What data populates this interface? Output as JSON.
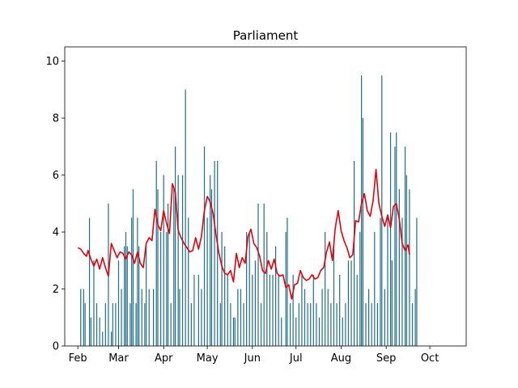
{
  "chart_data": {
    "type": "bar",
    "title": "Parliament",
    "xlabel": "",
    "ylabel": "",
    "ylim": [
      0,
      10.5
    ],
    "grid": false,
    "yticks": [
      0,
      2,
      4,
      6,
      8,
      10
    ],
    "xticks": [
      {
        "label": "Feb",
        "date": "2023-02-01"
      },
      {
        "label": "Mar",
        "date": "2023-03-01"
      },
      {
        "label": "Apr",
        "date": "2023-04-01"
      },
      {
        "label": "May",
        "date": "2023-05-01"
      },
      {
        "label": "Jun",
        "date": "2023-06-01"
      },
      {
        "label": "Jul",
        "date": "2023-07-01"
      },
      {
        "label": "Aug",
        "date": "2023-08-01"
      },
      {
        "label": "Sep",
        "date": "2023-09-01"
      },
      {
        "label": "Oct",
        "date": "2023-10-01"
      }
    ],
    "xlim": [
      "2023-01-23",
      "2023-10-26"
    ],
    "colors": {
      "bars": "#1f6f8b",
      "line": "#e8000b"
    },
    "series": [
      {
        "type": "bar",
        "points": [
          [
            "2023-02-03",
            2
          ],
          [
            "2023-02-05",
            2
          ],
          [
            "2023-02-06",
            1.5
          ],
          [
            "2023-02-09",
            4.5
          ],
          [
            "2023-02-10",
            1
          ],
          [
            "2023-02-12",
            3
          ],
          [
            "2023-02-14",
            1.5
          ],
          [
            "2023-02-16",
            1
          ],
          [
            "2023-02-18",
            0.5
          ],
          [
            "2023-02-20",
            1.5
          ],
          [
            "2023-02-22",
            5
          ],
          [
            "2023-02-24",
            0.5
          ],
          [
            "2023-02-25",
            1.5
          ],
          [
            "2023-02-27",
            1.5
          ],
          [
            "2023-03-01",
            3
          ],
          [
            "2023-03-03",
            2
          ],
          [
            "2023-03-05",
            3.5
          ],
          [
            "2023-03-06",
            4
          ],
          [
            "2023-03-07",
            3.5
          ],
          [
            "2023-03-09",
            1.5
          ],
          [
            "2023-03-10",
            4.5
          ],
          [
            "2023-03-11",
            5.5
          ],
          [
            "2023-03-13",
            1.5
          ],
          [
            "2023-03-14",
            4.5
          ],
          [
            "2023-03-15",
            3.5
          ],
          [
            "2023-03-17",
            2
          ],
          [
            "2023-03-19",
            1.5
          ],
          [
            "2023-03-20",
            3.5
          ],
          [
            "2023-03-22",
            2
          ],
          [
            "2023-03-25",
            2
          ],
          [
            "2023-03-27",
            6.5
          ],
          [
            "2023-03-28",
            5.5
          ],
          [
            "2023-03-30",
            4
          ],
          [
            "2023-04-01",
            6
          ],
          [
            "2023-04-03",
            4
          ],
          [
            "2023-04-04",
            5
          ],
          [
            "2023-04-06",
            1.5
          ],
          [
            "2023-04-08",
            5.5
          ],
          [
            "2023-04-09",
            7
          ],
          [
            "2023-04-11",
            6
          ],
          [
            "2023-04-12",
            2
          ],
          [
            "2023-04-14",
            6
          ],
          [
            "2023-04-16",
            9
          ],
          [
            "2023-04-18",
            4.5
          ],
          [
            "2023-04-20",
            1.5
          ],
          [
            "2023-04-22",
            2.5
          ],
          [
            "2023-04-25",
            2.5
          ],
          [
            "2023-04-27",
            2
          ],
          [
            "2023-04-29",
            7
          ],
          [
            "2023-05-01",
            4.5
          ],
          [
            "2023-05-03",
            6
          ],
          [
            "2023-05-04",
            5.5
          ],
          [
            "2023-05-06",
            6.5
          ],
          [
            "2023-05-08",
            6.5
          ],
          [
            "2023-05-10",
            1.5
          ],
          [
            "2023-05-11",
            4
          ],
          [
            "2023-05-13",
            3.5
          ],
          [
            "2023-05-15",
            2.5
          ],
          [
            "2023-05-17",
            1.5
          ],
          [
            "2023-05-19",
            1
          ],
          [
            "2023-05-20",
            1
          ],
          [
            "2023-05-22",
            2
          ],
          [
            "2023-05-24",
            2
          ],
          [
            "2023-05-26",
            1.5
          ],
          [
            "2023-05-28",
            4
          ],
          [
            "2023-05-30",
            4
          ],
          [
            "2023-06-01",
            2.5
          ],
          [
            "2023-06-03",
            3
          ],
          [
            "2023-06-05",
            5
          ],
          [
            "2023-06-07",
            1.5
          ],
          [
            "2023-06-09",
            5
          ],
          [
            "2023-06-11",
            4
          ],
          [
            "2023-06-13",
            2.5
          ],
          [
            "2023-06-15",
            2.5
          ],
          [
            "2023-06-17",
            3.5
          ],
          [
            "2023-06-19",
            2.5
          ],
          [
            "2023-06-21",
            1
          ],
          [
            "2023-06-24",
            4
          ],
          [
            "2023-06-25",
            4.5
          ],
          [
            "2023-06-27",
            1.5
          ],
          [
            "2023-06-29",
            2.5
          ],
          [
            "2023-07-01",
            1
          ],
          [
            "2023-07-03",
            1.5
          ],
          [
            "2023-07-05",
            2.5
          ],
          [
            "2023-07-07",
            2
          ],
          [
            "2023-07-09",
            1.5
          ],
          [
            "2023-07-11",
            1.5
          ],
          [
            "2023-07-13",
            2.5
          ],
          [
            "2023-07-15",
            1.5
          ],
          [
            "2023-07-17",
            1
          ],
          [
            "2023-07-19",
            2
          ],
          [
            "2023-07-21",
            4
          ],
          [
            "2023-07-23",
            2
          ],
          [
            "2023-07-25",
            1.5
          ],
          [
            "2023-07-27",
            3.5
          ],
          [
            "2023-07-29",
            1.5
          ],
          [
            "2023-07-31",
            2.5
          ],
          [
            "2023-08-02",
            1
          ],
          [
            "2023-08-04",
            1.5
          ],
          [
            "2023-08-06",
            3
          ],
          [
            "2023-08-08",
            3
          ],
          [
            "2023-08-10",
            6.5
          ],
          [
            "2023-08-12",
            2.5
          ],
          [
            "2023-08-14",
            4
          ],
          [
            "2023-08-15",
            9.5
          ],
          [
            "2023-08-16",
            8
          ],
          [
            "2023-08-18",
            1.5
          ],
          [
            "2023-08-20",
            2
          ],
          [
            "2023-08-22",
            1.5
          ],
          [
            "2023-08-24",
            4
          ],
          [
            "2023-08-26",
            1.5
          ],
          [
            "2023-08-28",
            4.5
          ],
          [
            "2023-08-29",
            9.5
          ],
          [
            "2023-08-31",
            2
          ],
          [
            "2023-09-02",
            4.5
          ],
          [
            "2023-09-04",
            7.5
          ],
          [
            "2023-09-05",
            3
          ],
          [
            "2023-09-07",
            7
          ],
          [
            "2023-09-08",
            7.5
          ],
          [
            "2023-09-10",
            5.5
          ],
          [
            "2023-09-12",
            4.5
          ],
          [
            "2023-09-14",
            7
          ],
          [
            "2023-09-15",
            6
          ],
          [
            "2023-09-17",
            5.5
          ],
          [
            "2023-09-19",
            1.5
          ],
          [
            "2023-09-21",
            2
          ],
          [
            "2023-09-22",
            4.5
          ]
        ]
      },
      {
        "type": "line",
        "points": [
          [
            "2023-02-01",
            3.45
          ],
          [
            "2023-02-03",
            3.4
          ],
          [
            "2023-02-05",
            3.25
          ],
          [
            "2023-02-07",
            3.15
          ],
          [
            "2023-02-08",
            3.35
          ],
          [
            "2023-02-10",
            3.05
          ],
          [
            "2023-02-12",
            2.8
          ],
          [
            "2023-02-14",
            3.05
          ],
          [
            "2023-02-16",
            2.7
          ],
          [
            "2023-02-18",
            3.1
          ],
          [
            "2023-02-20",
            2.75
          ],
          [
            "2023-02-22",
            2.45
          ],
          [
            "2023-02-24",
            3.6
          ],
          [
            "2023-02-26",
            3.35
          ],
          [
            "2023-02-28",
            3.1
          ],
          [
            "2023-03-02",
            3.3
          ],
          [
            "2023-03-04",
            3.25
          ],
          [
            "2023-03-06",
            3.05
          ],
          [
            "2023-03-08",
            3.3
          ],
          [
            "2023-03-10",
            3.2
          ],
          [
            "2023-03-12",
            2.9
          ],
          [
            "2023-03-14",
            3.3
          ],
          [
            "2023-03-16",
            2.9
          ],
          [
            "2023-03-18",
            2.75
          ],
          [
            "2023-03-20",
            3.6
          ],
          [
            "2023-03-22",
            3.8
          ],
          [
            "2023-03-24",
            3.7
          ],
          [
            "2023-03-26",
            4.8
          ],
          [
            "2023-03-28",
            4.25
          ],
          [
            "2023-03-30",
            4.05
          ],
          [
            "2023-04-01",
            4.75
          ],
          [
            "2023-04-03",
            4.3
          ],
          [
            "2023-04-05",
            3.95
          ],
          [
            "2023-04-07",
            5.7
          ],
          [
            "2023-04-09",
            5.4
          ],
          [
            "2023-04-11",
            4.05
          ],
          [
            "2023-04-13",
            3.8
          ],
          [
            "2023-04-15",
            3.6
          ],
          [
            "2023-04-17",
            3.45
          ],
          [
            "2023-04-19",
            3.3
          ],
          [
            "2023-04-21",
            3.35
          ],
          [
            "2023-04-23",
            3.8
          ],
          [
            "2023-04-25",
            3.4
          ],
          [
            "2023-04-27",
            3.85
          ],
          [
            "2023-04-29",
            4.75
          ],
          [
            "2023-05-01",
            5.25
          ],
          [
            "2023-05-03",
            5.05
          ],
          [
            "2023-05-05",
            4.65
          ],
          [
            "2023-05-07",
            3.9
          ],
          [
            "2023-05-09",
            3.25
          ],
          [
            "2023-05-11",
            2.8
          ],
          [
            "2023-05-13",
            2.55
          ],
          [
            "2023-05-15",
            2.5
          ],
          [
            "2023-05-17",
            2.65
          ],
          [
            "2023-05-19",
            2.25
          ],
          [
            "2023-05-21",
            3.25
          ],
          [
            "2023-05-23",
            2.75
          ],
          [
            "2023-05-25",
            3.1
          ],
          [
            "2023-05-27",
            2.9
          ],
          [
            "2023-05-29",
            3.85
          ],
          [
            "2023-05-31",
            4.1
          ],
          [
            "2023-06-02",
            3.6
          ],
          [
            "2023-06-04",
            3.45
          ],
          [
            "2023-06-06",
            3.15
          ],
          [
            "2023-06-08",
            2.65
          ],
          [
            "2023-06-10",
            2.55
          ],
          [
            "2023-06-12",
            3.0
          ],
          [
            "2023-06-14",
            2.7
          ],
          [
            "2023-06-16",
            3.05
          ],
          [
            "2023-06-18",
            2.55
          ],
          [
            "2023-06-20",
            2.45
          ],
          [
            "2023-06-22",
            2.5
          ],
          [
            "2023-06-24",
            2.05
          ],
          [
            "2023-06-26",
            2.15
          ],
          [
            "2023-06-28",
            1.65
          ],
          [
            "2023-06-30",
            2.15
          ],
          [
            "2023-07-02",
            2.2
          ],
          [
            "2023-07-04",
            2.65
          ],
          [
            "2023-07-06",
            2.4
          ],
          [
            "2023-07-08",
            2.3
          ],
          [
            "2023-07-10",
            2.35
          ],
          [
            "2023-07-12",
            2.5
          ],
          [
            "2023-07-14",
            2.35
          ],
          [
            "2023-07-16",
            2.4
          ],
          [
            "2023-07-18",
            2.65
          ],
          [
            "2023-07-20",
            2.75
          ],
          [
            "2023-07-22",
            3.3
          ],
          [
            "2023-07-24",
            3.65
          ],
          [
            "2023-07-26",
            3.0
          ],
          [
            "2023-07-28",
            4.15
          ],
          [
            "2023-07-30",
            4.75
          ],
          [
            "2023-08-01",
            4.05
          ],
          [
            "2023-08-03",
            3.7
          ],
          [
            "2023-08-05",
            3.45
          ],
          [
            "2023-08-07",
            3.1
          ],
          [
            "2023-08-09",
            3.2
          ],
          [
            "2023-08-11",
            4.4
          ],
          [
            "2023-08-13",
            4.35
          ],
          [
            "2023-08-15",
            5.0
          ],
          [
            "2023-08-17",
            5.35
          ],
          [
            "2023-08-19",
            4.75
          ],
          [
            "2023-08-21",
            4.55
          ],
          [
            "2023-08-23",
            5.1
          ],
          [
            "2023-08-25",
            6.2
          ],
          [
            "2023-08-27",
            5.0
          ],
          [
            "2023-08-29",
            4.55
          ],
          [
            "2023-08-31",
            4.2
          ],
          [
            "2023-09-02",
            4.6
          ],
          [
            "2023-09-04",
            4.15
          ],
          [
            "2023-09-06",
            4.9
          ],
          [
            "2023-09-08",
            5.0
          ],
          [
            "2023-09-10",
            4.45
          ],
          [
            "2023-09-12",
            3.6
          ],
          [
            "2023-09-14",
            3.35
          ],
          [
            "2023-09-16",
            3.55
          ],
          [
            "2023-09-17",
            3.2
          ]
        ]
      }
    ]
  }
}
